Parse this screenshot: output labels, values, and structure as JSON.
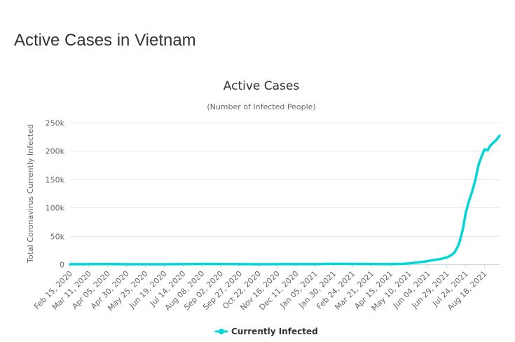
{
  "page": {
    "title": "Active Cases in Vietnam"
  },
  "chart_data": {
    "type": "line",
    "title": "Active Cases",
    "subtitle": "(Number of Infected People)",
    "xlabel": "",
    "ylabel": "Total Coronavirus Currently Infected",
    "ylim": [
      0,
      250000
    ],
    "yticks": [
      0,
      50000,
      100000,
      150000,
      200000,
      250000
    ],
    "ytick_labels": [
      "0",
      "50k",
      "100k",
      "150k",
      "200k",
      "250k"
    ],
    "xlim": [
      "2020-02-15",
      "2021-09-07"
    ],
    "xtick_labels": [
      "Feb 15, 2020",
      "Mar 11, 2020",
      "Apr 05, 2020",
      "Apr 30, 2020",
      "May 25, 2020",
      "Jun 19, 2020",
      "Jul 14, 2020",
      "Aug 08, 2020",
      "Sep 02, 2020",
      "Sep 27, 2020",
      "Oct 22, 2020",
      "Nov 16, 2020",
      "Dec 11, 2020",
      "Jan 05, 2021",
      "Jan 30, 2021",
      "Feb 24, 2021",
      "Mar 21, 2021",
      "Apr 15, 2021",
      "May 10, 2021",
      "Jun 04, 2021",
      "Jun 29, 2021",
      "Jul 24, 2021",
      "Aug 18, 2021"
    ],
    "grid": true,
    "legend_position": "bottom-center",
    "series": [
      {
        "name": "Currently Infected",
        "color": "#00d6d6",
        "x": [
          "2020-02-15",
          "2020-03-11",
          "2020-04-05",
          "2020-04-30",
          "2020-05-25",
          "2020-06-19",
          "2020-07-14",
          "2020-08-08",
          "2020-09-02",
          "2020-09-27",
          "2020-10-22",
          "2020-11-16",
          "2020-12-11",
          "2021-01-05",
          "2021-01-30",
          "2021-02-24",
          "2021-03-21",
          "2021-04-15",
          "2021-05-01",
          "2021-05-10",
          "2021-05-20",
          "2021-06-01",
          "2021-06-10",
          "2021-06-20",
          "2021-06-29",
          "2021-07-05",
          "2021-07-10",
          "2021-07-15",
          "2021-07-20",
          "2021-07-24",
          "2021-07-28",
          "2021-08-02",
          "2021-08-06",
          "2021-08-10",
          "2021-08-14",
          "2021-08-18",
          "2021-08-22",
          "2021-08-26",
          "2021-08-30",
          "2021-09-03",
          "2021-09-07"
        ],
        "y": [
          10,
          90,
          200,
          60,
          50,
          30,
          100,
          500,
          400,
          80,
          50,
          80,
          80,
          100,
          800,
          500,
          200,
          150,
          600,
          1500,
          3000,
          5000,
          7000,
          9000,
          12000,
          16000,
          22000,
          35000,
          60000,
          90000,
          110000,
          130000,
          150000,
          175000,
          190000,
          203000,
          201000,
          210000,
          215000,
          220000,
          227000
        ]
      }
    ]
  }
}
